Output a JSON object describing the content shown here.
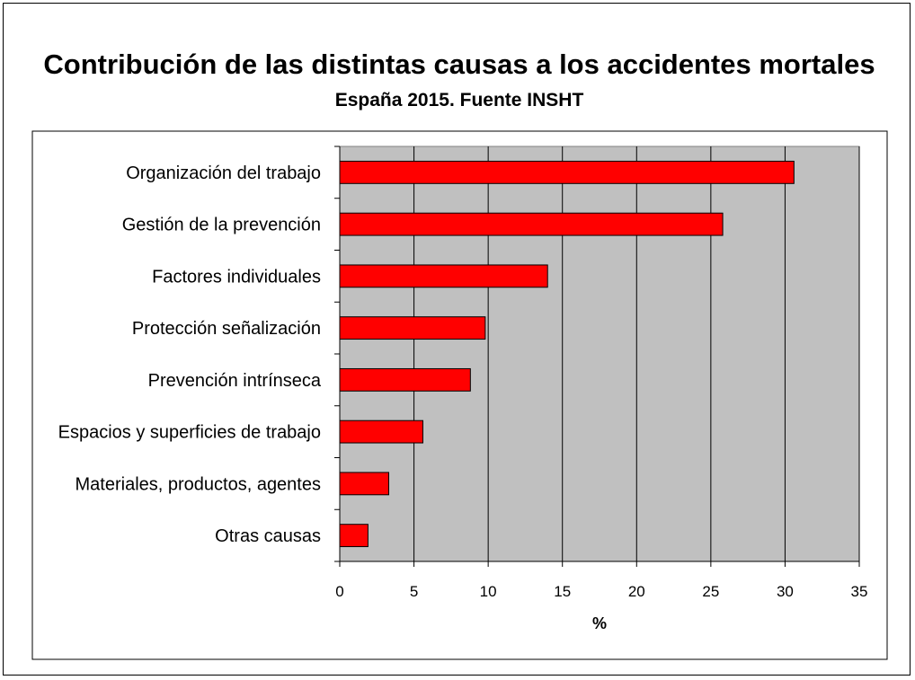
{
  "chart_data": {
    "type": "bar",
    "orientation": "horizontal",
    "title": "Contribución de las distintas causas a los accidentes mortales",
    "subtitle": "España 2015. Fuente INSHT",
    "categories": [
      "Organización del trabajo",
      "Gestión de la prevención",
      "Factores individuales",
      "Protección señalización",
      "Prevención intrínseca",
      "Espacios y superficies de trabajo",
      "Materiales, productos, agentes",
      "Otras causas"
    ],
    "values": [
      30.6,
      25.8,
      14.0,
      9.8,
      8.8,
      5.6,
      3.3,
      1.9
    ],
    "xlabel": "%",
    "xlim": [
      0,
      35
    ],
    "xticks": [
      0,
      5,
      10,
      15,
      20,
      25,
      30,
      35
    ],
    "grid": true,
    "bar_color": "#ff0000",
    "plot_background": "#c0c0c0"
  }
}
